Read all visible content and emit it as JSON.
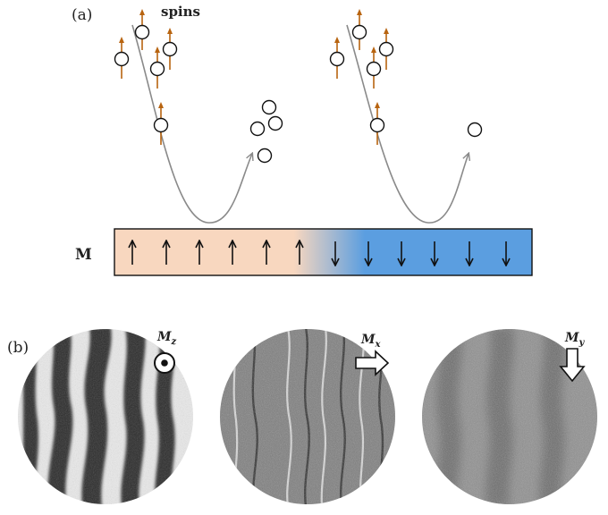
{
  "panel_a": {
    "label": "(a)",
    "spins_label": "spins",
    "magnetization_label": "M",
    "colors": {
      "up_domain": "#f8d7bf",
      "down_domain": "#5b9ee0",
      "spin_arrow": "#b86410",
      "trajectory": "#8a8a8a",
      "bar_border": "#111111"
    },
    "domain_arrows": [
      "up",
      "up",
      "up",
      "up",
      "up",
      "up",
      "down",
      "down",
      "down",
      "down",
      "down",
      "down"
    ]
  },
  "panel_b": {
    "label": "(b)",
    "images": [
      {
        "component_symbol": "M",
        "component_subscript": "z",
        "indicator": "out-of-plane-dot-icon"
      },
      {
        "component_symbol": "M",
        "component_subscript": "x",
        "indicator": "right-arrow-icon"
      },
      {
        "component_symbol": "M",
        "component_subscript": "y",
        "indicator": "down-arrow-icon"
      }
    ]
  }
}
